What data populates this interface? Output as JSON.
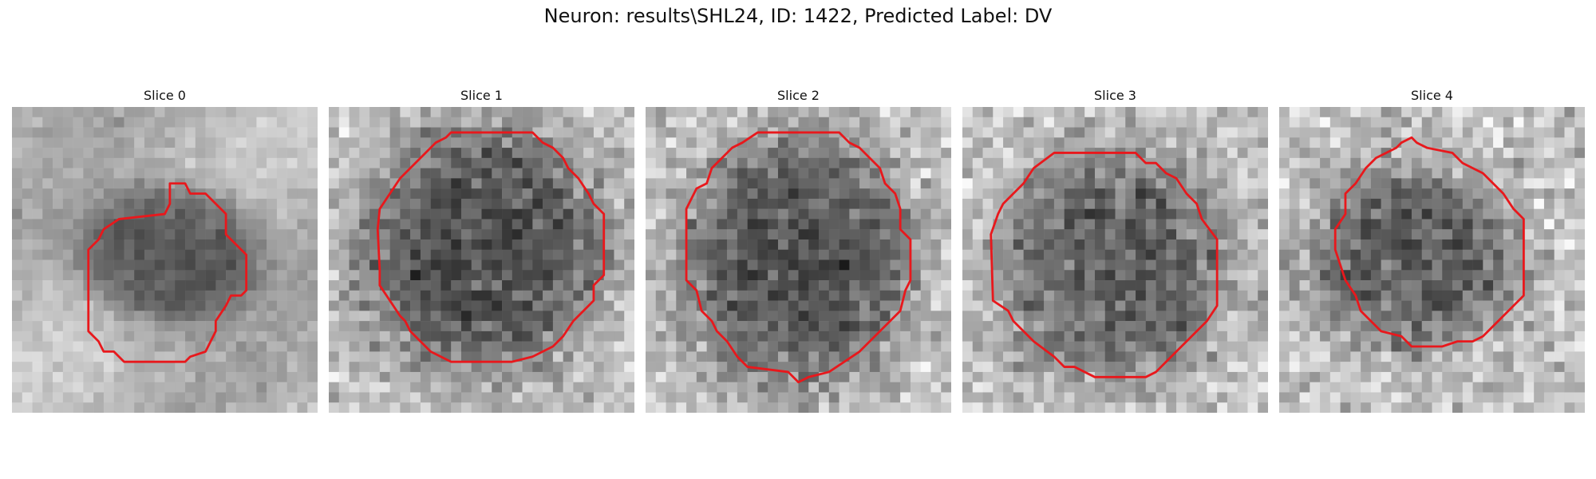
{
  "figure": {
    "title": "Neuron: results\\SHL24, ID: 1422, Predicted Label: DV"
  },
  "contour_color": "#e8181c",
  "colormap": "gray",
  "panels": [
    {
      "title": "Slice 0"
    },
    {
      "title": "Slice 1"
    },
    {
      "title": "Slice 2"
    },
    {
      "title": "Slice 3"
    },
    {
      "title": "Slice 4"
    }
  ]
}
